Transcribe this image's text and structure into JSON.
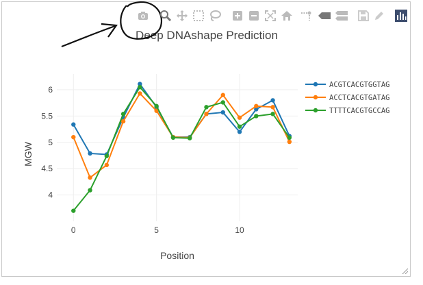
{
  "window": {
    "title": ""
  },
  "modebar": {
    "buttons": [
      {
        "name": "camera-icon",
        "title": "Download plot as a png"
      },
      {
        "name": "zoom-icon",
        "title": "Zoom"
      },
      {
        "name": "pan-icon",
        "title": "Pan"
      },
      {
        "name": "box-select-icon",
        "title": "Box Select"
      },
      {
        "name": "lasso-select-icon",
        "title": "Lasso Select"
      },
      {
        "name": "zoom-in-icon",
        "title": "Zoom in"
      },
      {
        "name": "zoom-out-icon",
        "title": "Zoom out"
      },
      {
        "name": "autoscale-icon",
        "title": "Autoscale"
      },
      {
        "name": "home-icon",
        "title": "Reset axes"
      },
      {
        "name": "spike-lines-icon",
        "title": "Toggle Spike Lines"
      },
      {
        "name": "hover-closest-icon",
        "title": "Show closest data on hover"
      },
      {
        "name": "hover-compare-icon",
        "title": "Compare data on hover"
      },
      {
        "name": "save-icon",
        "title": "Edit in Chart Studio"
      },
      {
        "name": "pencil-icon",
        "title": "Edit"
      },
      {
        "name": "plotly-logo-icon",
        "title": "Produced with Plotly"
      }
    ]
  },
  "colors": {
    "series": [
      "#1f77b4",
      "#ff7f0e",
      "#2ca02c"
    ],
    "grid": "#eeeeee",
    "annotation": "#111111"
  },
  "chart_data": {
    "type": "line",
    "title": "Deep DNAshape Prediction",
    "xlabel": "Position",
    "ylabel": "MGW",
    "xlim": [
      -1,
      13.5
    ],
    "ylim": [
      3.5,
      6.3
    ],
    "xticks": [
      0,
      5,
      10
    ],
    "yticks": [
      4,
      4.5,
      5,
      5.5,
      6
    ],
    "xtick_labels": [
      "0",
      "5",
      "10"
    ],
    "ytick_labels": [
      "4",
      "4.5",
      "5",
      "5.5",
      "6"
    ],
    "grid": true,
    "legend": "right",
    "x": [
      0,
      1,
      2,
      3,
      4,
      5,
      6,
      7,
      8,
      9,
      10,
      11,
      12,
      13
    ],
    "series": [
      {
        "name": "ACGTCACGTGGTAG",
        "values": [
          5.34,
          4.79,
          4.77,
          5.47,
          6.11,
          5.67,
          5.1,
          5.1,
          5.54,
          5.57,
          5.2,
          5.63,
          5.8,
          5.12
        ]
      },
      {
        "name": "ACCTCACGTGATAG",
        "values": [
          5.1,
          4.33,
          4.57,
          5.4,
          5.93,
          5.6,
          5.1,
          5.09,
          5.54,
          5.9,
          5.47,
          5.69,
          5.67,
          5.01
        ]
      },
      {
        "name": "TTTTCACGTGCCAG",
        "values": [
          3.7,
          4.09,
          4.74,
          5.54,
          6.05,
          5.69,
          5.09,
          5.08,
          5.67,
          5.76,
          5.3,
          5.5,
          5.54,
          5.09
        ]
      }
    ]
  }
}
